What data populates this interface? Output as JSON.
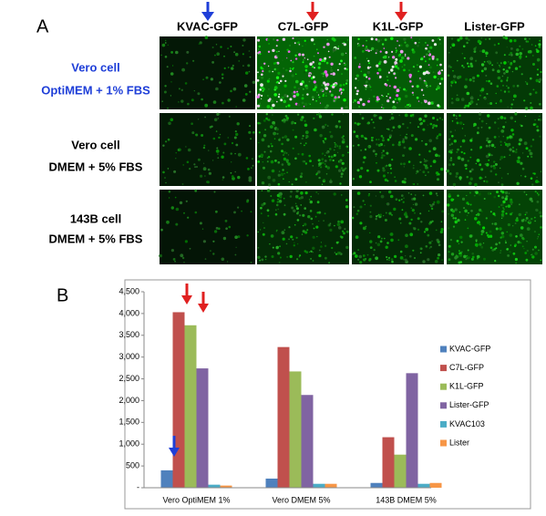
{
  "panel_a": {
    "label": "A",
    "columns": [
      "KVAC-GFP",
      "C7L-GFP",
      "K1L-GFP",
      "Lister-GFP"
    ],
    "rows": [
      [
        "Vero cell",
        "OptiMEM + 1% FBS"
      ],
      [
        "Vero cell",
        "DMEM + 5% FBS"
      ],
      [
        "143B cell",
        "DMEM + 5% FBS"
      ]
    ]
  },
  "panel_b_label": "B",
  "chart_data": {
    "type": "bar",
    "categories": [
      "Vero OptiMEM 1%",
      "Vero DMEM 5%",
      "143B DMEM 5%"
    ],
    "series": [
      {
        "name": "KVAC-GFP",
        "color": "#4f81bd",
        "values": [
          400,
          210,
          110
        ]
      },
      {
        "name": "C7L-GFP",
        "color": "#c0504d",
        "values": [
          4030,
          3230,
          1160
        ]
      },
      {
        "name": "K1L-GFP",
        "color": "#9bbb59",
        "values": [
          3730,
          2670,
          760
        ]
      },
      {
        "name": "Lister-GFP",
        "color": "#8064a2",
        "values": [
          2740,
          2130,
          2630
        ]
      },
      {
        "name": "KVAC103",
        "color": "#4bacc6",
        "values": [
          70,
          90,
          90
        ]
      },
      {
        "name": "Lister",
        "color": "#f79646",
        "values": [
          50,
          90,
          110
        ]
      }
    ],
    "ylim": [
      0,
      4500
    ],
    "yticks": [
      {
        "value": 0,
        "label": "-"
      },
      500,
      {
        "value": 1000,
        "label": "1,000"
      },
      {
        "value": 1500,
        "label": "1,500"
      },
      {
        "value": 2000,
        "label": "2,000"
      },
      {
        "value": 2500,
        "label": "2,500"
      },
      {
        "value": 3000,
        "label": "3,000"
      },
      {
        "value": 3500,
        "label": "3,500"
      },
      {
        "value": 4000,
        "label": "4,000"
      },
      {
        "value": 4500,
        "label": "4,500"
      }
    ],
    "legend": "right"
  }
}
